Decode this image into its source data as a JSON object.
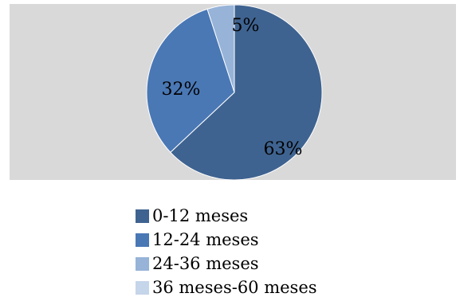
{
  "chart_data": {
    "type": "pie",
    "categories": [
      "0-12 meses",
      "12-24 meses",
      "24-36 meses",
      "36 meses-60 meses"
    ],
    "values": [
      63,
      32,
      5,
      0
    ],
    "data_labels": [
      "63%",
      "32%",
      "5%",
      ""
    ],
    "colors": [
      "#3f6390",
      "#4a78b5",
      "#97b3d8",
      "#c5d5ea"
    ],
    "background": "#d9d9d9",
    "legend_position": "bottom"
  }
}
